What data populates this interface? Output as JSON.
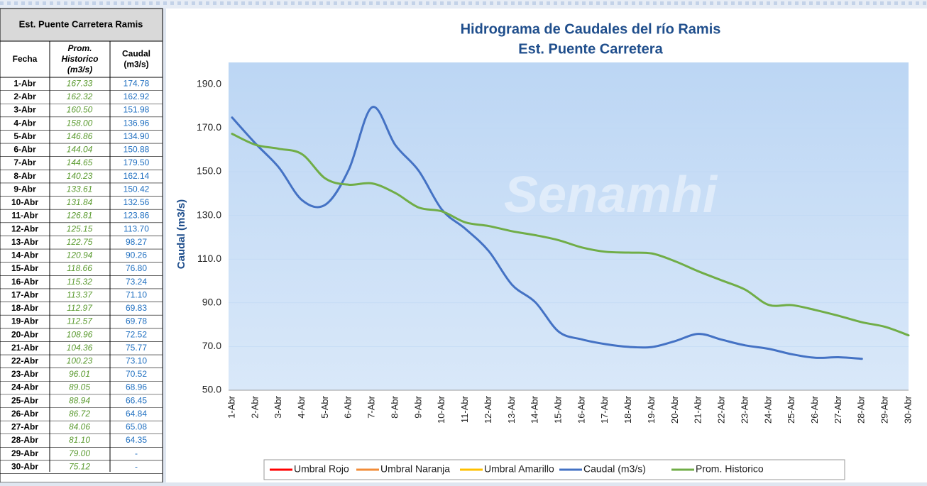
{
  "table": {
    "title": "Est. Puente Carretera Ramis",
    "headers": [
      "Fecha",
      "Prom. Historico (m3/s)",
      "Caudal (m3/s)"
    ],
    "rows": [
      [
        "1-Abr",
        "167.33",
        "174.78"
      ],
      [
        "2-Abr",
        "162.32",
        "162.92"
      ],
      [
        "3-Abr",
        "160.50",
        "151.98"
      ],
      [
        "4-Abr",
        "158.00",
        "136.96"
      ],
      [
        "5-Abr",
        "146.86",
        "134.90"
      ],
      [
        "6-Abr",
        "144.04",
        "150.88"
      ],
      [
        "7-Abr",
        "144.65",
        "179.50"
      ],
      [
        "8-Abr",
        "140.23",
        "162.14"
      ],
      [
        "9-Abr",
        "133.61",
        "150.42"
      ],
      [
        "10-Abr",
        "131.84",
        "132.56"
      ],
      [
        "11-Abr",
        "126.81",
        "123.86"
      ],
      [
        "12-Abr",
        "125.15",
        "113.70"
      ],
      [
        "13-Abr",
        "122.75",
        "98.27"
      ],
      [
        "14-Abr",
        "120.94",
        "90.26"
      ],
      [
        "15-Abr",
        "118.66",
        "76.80"
      ],
      [
        "16-Abr",
        "115.32",
        "73.24"
      ],
      [
        "17-Abr",
        "113.37",
        "71.10"
      ],
      [
        "18-Abr",
        "112.97",
        "69.83"
      ],
      [
        "19-Abr",
        "112.57",
        "69.78"
      ],
      [
        "20-Abr",
        "108.96",
        "72.52"
      ],
      [
        "21-Abr",
        "104.36",
        "75.77"
      ],
      [
        "22-Abr",
        "100.23",
        "73.10"
      ],
      [
        "23-Abr",
        "96.01",
        "70.52"
      ],
      [
        "24-Abr",
        "89.05",
        "68.96"
      ],
      [
        "25-Abr",
        "88.94",
        "66.45"
      ],
      [
        "26-Abr",
        "86.72",
        "64.84"
      ],
      [
        "27-Abr",
        "84.06",
        "65.08"
      ],
      [
        "28-Abr",
        "81.10",
        "64.35"
      ],
      [
        "29-Abr",
        "79.00",
        "-"
      ],
      [
        "30-Abr",
        "75.12",
        "-"
      ]
    ]
  },
  "chart_data": {
    "type": "line",
    "title": [
      "Hidrograma de Caudales del río Ramis",
      "Est. Puente Carretera"
    ],
    "watermark": "Senamhi",
    "y_label": "Caudal (m3/s)",
    "categories": [
      "1-Abr",
      "2-Abr",
      "3-Abr",
      "4-Abr",
      "5-Abr",
      "6-Abr",
      "7-Abr",
      "8-Abr",
      "9-Abr",
      "10-Abr",
      "11-Abr",
      "12-Abr",
      "13-Abr",
      "14-Abr",
      "15-Abr",
      "16-Abr",
      "17-Abr",
      "18-Abr",
      "19-Abr",
      "20-Abr",
      "21-Abr",
      "22-Abr",
      "23-Abr",
      "24-Abr",
      "25-Abr",
      "26-Abr",
      "27-Abr",
      "28-Abr",
      "29-Abr",
      "30-Abr"
    ],
    "ylim": [
      50,
      200
    ],
    "yticks": [
      {
        "value": 50,
        "label": "50.0"
      },
      {
        "value": 70,
        "label": "70.0"
      },
      {
        "value": 90,
        "label": "90.0"
      },
      {
        "value": 110,
        "label": "110.0"
      },
      {
        "value": 130,
        "label": "130.0"
      },
      {
        "value": 150,
        "label": "150.0"
      },
      {
        "value": 170,
        "label": "170.0"
      },
      {
        "value": 190,
        "label": "190.0"
      }
    ],
    "series": [
      {
        "name": "Umbral Rojo",
        "color": "#ff0000",
        "values": [
          null,
          null,
          null,
          null,
          null,
          null,
          null,
          null,
          null,
          null,
          null,
          null,
          null,
          null,
          null,
          null,
          null,
          null,
          null,
          null,
          null,
          null,
          null,
          null,
          null,
          null,
          null,
          null,
          null,
          null
        ]
      },
      {
        "name": "Umbral Naranja",
        "color": "#f28c38",
        "values": [
          null,
          null,
          null,
          null,
          null,
          null,
          null,
          null,
          null,
          null,
          null,
          null,
          null,
          null,
          null,
          null,
          null,
          null,
          null,
          null,
          null,
          null,
          null,
          null,
          null,
          null,
          null,
          null,
          null,
          null
        ]
      },
      {
        "name": "Umbral Amarillo",
        "color": "#ffc000",
        "values": [
          null,
          null,
          null,
          null,
          null,
          null,
          null,
          null,
          null,
          null,
          null,
          null,
          null,
          null,
          null,
          null,
          null,
          null,
          null,
          null,
          null,
          null,
          null,
          null,
          null,
          null,
          null,
          null,
          null,
          null
        ]
      },
      {
        "name": "Caudal (m3/s)",
        "color": "#4472c4",
        "values": [
          174.78,
          162.92,
          151.98,
          136.96,
          134.9,
          150.88,
          179.5,
          162.14,
          150.42,
          132.56,
          123.86,
          113.7,
          98.27,
          90.26,
          76.8,
          73.24,
          71.1,
          69.83,
          69.78,
          72.52,
          75.77,
          73.1,
          70.52,
          68.96,
          66.45,
          64.84,
          65.08,
          64.35,
          null,
          null
        ]
      },
      {
        "name": "Prom. Historico",
        "color": "#70ad47",
        "values": [
          167.33,
          162.32,
          160.5,
          158.0,
          146.86,
          144.04,
          144.65,
          140.23,
          133.61,
          131.84,
          126.81,
          125.15,
          122.75,
          120.94,
          118.66,
          115.32,
          113.37,
          112.97,
          112.57,
          108.96,
          104.36,
          100.23,
          96.01,
          89.05,
          88.94,
          86.72,
          84.06,
          81.1,
          79.0,
          75.12
        ]
      }
    ]
  }
}
